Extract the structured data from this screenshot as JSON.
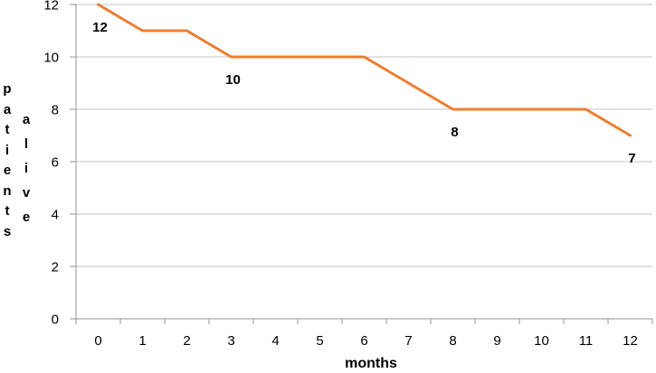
{
  "chart_data": {
    "type": "line",
    "title": "",
    "xlabel": "months",
    "ylabel_vertical_words": [
      "patients",
      "alive"
    ],
    "x": [
      0,
      1,
      2,
      3,
      4,
      5,
      6,
      7,
      8,
      9,
      10,
      11,
      12
    ],
    "series": [
      {
        "name": "patients alive",
        "values": [
          12,
          11,
          11,
          10,
          10,
          10,
          10,
          9,
          8,
          8,
          8,
          8,
          7
        ],
        "color": "#ED7D31"
      }
    ],
    "xtick_labels": [
      "0",
      "1",
      "2",
      "3",
      "4",
      "5",
      "6",
      "7",
      "8",
      "9",
      "10",
      "11",
      "12"
    ],
    "yticks": [
      0,
      2,
      4,
      6,
      8,
      10,
      12
    ],
    "ytick_labels": [
      "0",
      "2",
      "4",
      "6",
      "8",
      "10",
      "12"
    ],
    "ylim": [
      0,
      12
    ],
    "grid": "horizontal",
    "legend": "none",
    "data_labels": [
      {
        "month": 0,
        "value": 12,
        "text": "12"
      },
      {
        "month": 3,
        "value": 10,
        "text": "10"
      },
      {
        "month": 8,
        "value": 8,
        "text": "8"
      },
      {
        "month": 12,
        "value": 7,
        "text": "7"
      }
    ],
    "colors": {
      "line": "#ED7D31",
      "gridline": "#C3C3C3",
      "axis": "#969696",
      "text": "#000000",
      "background": "#FFFFFF"
    }
  }
}
